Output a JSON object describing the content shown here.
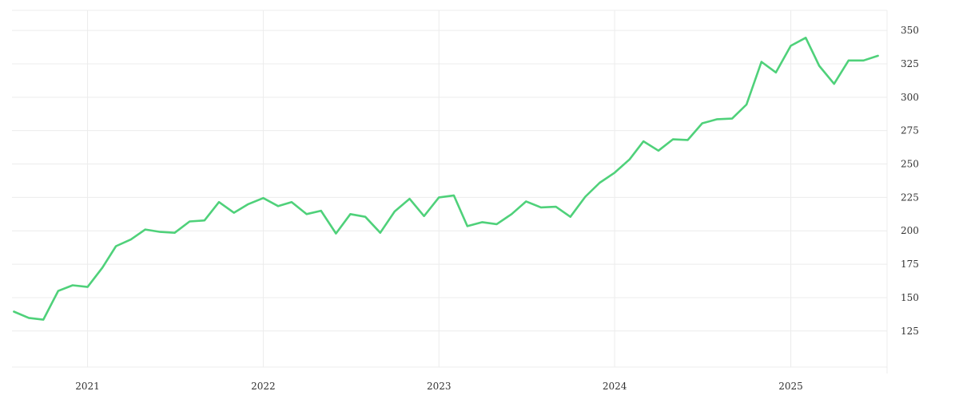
{
  "chart_data": {
    "type": "line",
    "title": "",
    "xlabel": "",
    "ylabel": "",
    "x_axis": {
      "type": "date",
      "range": [
        "2020-07-28",
        "2025-07-20"
      ],
      "ticks": [
        {
          "label": "2021",
          "date": "2021-01-01"
        },
        {
          "label": "2022",
          "date": "2022-01-01"
        },
        {
          "label": "2023",
          "date": "2023-01-01"
        },
        {
          "label": "2024",
          "date": "2024-01-01"
        },
        {
          "label": "2025",
          "date": "2025-01-01"
        }
      ]
    },
    "y_axis": {
      "position": "right",
      "range": [
        98,
        365
      ],
      "ticks": [
        125,
        150,
        175,
        200,
        225,
        250,
        275,
        300,
        325,
        350
      ]
    },
    "grid": true,
    "legend": "none",
    "colors": {
      "series": "#4fd17a",
      "grid": "#ececec",
      "text": "#333333"
    },
    "series": [
      {
        "points": [
          [
            "2020-08-01",
            139.5
          ],
          [
            "2020-09-01",
            134.8
          ],
          [
            "2020-10-01",
            133.5
          ],
          [
            "2020-11-01",
            155.0
          ],
          [
            "2020-12-01",
            159.2
          ],
          [
            "2021-01-01",
            158.0
          ],
          [
            "2021-02-01",
            172.5
          ],
          [
            "2021-03-01",
            188.5
          ],
          [
            "2021-04-01",
            193.5
          ],
          [
            "2021-05-01",
            201.0
          ],
          [
            "2021-06-01",
            199.2
          ],
          [
            "2021-07-01",
            198.5
          ],
          [
            "2021-08-01",
            207.0
          ],
          [
            "2021-09-01",
            207.8
          ],
          [
            "2021-10-01",
            221.5
          ],
          [
            "2021-11-01",
            213.5
          ],
          [
            "2021-12-01",
            220.0
          ],
          [
            "2022-01-01",
            224.5
          ],
          [
            "2022-02-01",
            218.5
          ],
          [
            "2022-03-01",
            221.5
          ],
          [
            "2022-04-01",
            212.5
          ],
          [
            "2022-05-01",
            215.0
          ],
          [
            "2022-06-01",
            198.0
          ],
          [
            "2022-07-01",
            212.5
          ],
          [
            "2022-08-01",
            210.5
          ],
          [
            "2022-09-01",
            198.5
          ],
          [
            "2022-10-01",
            214.5
          ],
          [
            "2022-11-01",
            224.0
          ],
          [
            "2022-12-01",
            211.0
          ],
          [
            "2023-01-01",
            225.0
          ],
          [
            "2023-02-01",
            226.5
          ],
          [
            "2023-03-01",
            203.5
          ],
          [
            "2023-04-01",
            206.5
          ],
          [
            "2023-05-01",
            205.0
          ],
          [
            "2023-06-01",
            212.5
          ],
          [
            "2023-07-01",
            222.0
          ],
          [
            "2023-08-01",
            217.5
          ],
          [
            "2023-09-01",
            218.0
          ],
          [
            "2023-10-01",
            210.5
          ],
          [
            "2023-11-01",
            225.5
          ],
          [
            "2023-12-01",
            236.0
          ],
          [
            "2024-01-01",
            243.5
          ],
          [
            "2024-02-01",
            253.5
          ],
          [
            "2024-03-01",
            267.0
          ],
          [
            "2024-04-01",
            260.0
          ],
          [
            "2024-05-01",
            268.5
          ],
          [
            "2024-06-01",
            268.0
          ],
          [
            "2024-07-01",
            280.5
          ],
          [
            "2024-08-01",
            283.5
          ],
          [
            "2024-09-01",
            284.0
          ],
          [
            "2024-10-01",
            294.5
          ],
          [
            "2024-11-01",
            326.5
          ],
          [
            "2024-12-01",
            318.5
          ],
          [
            "2025-01-01",
            338.5
          ],
          [
            "2025-02-01",
            344.5
          ],
          [
            "2025-03-01",
            323.5
          ],
          [
            "2025-04-01",
            310.0
          ],
          [
            "2025-05-01",
            327.5
          ],
          [
            "2025-06-01",
            327.5
          ],
          [
            "2025-07-01",
            331.0
          ]
        ]
      }
    ]
  }
}
